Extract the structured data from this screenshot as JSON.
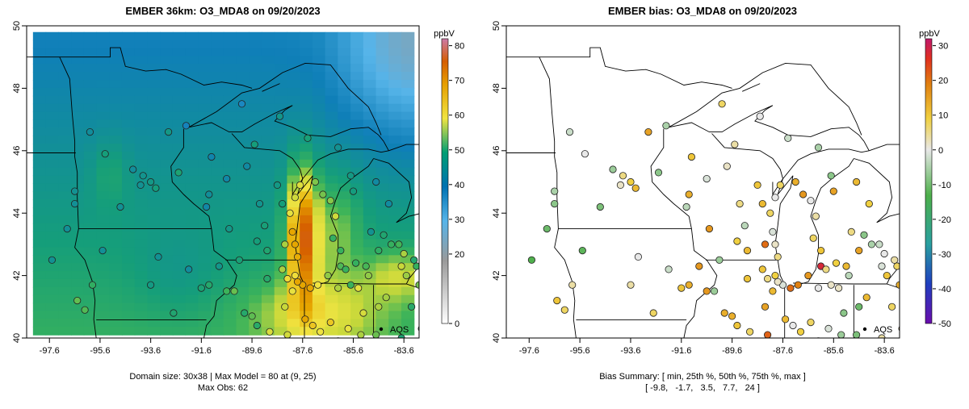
{
  "chart_data": [
    {
      "type": "heatmap",
      "title": "EMBER 36km: O3_MDA8 on 09/20/2023",
      "x_ticks": [
        "-97.6",
        "-95.6",
        "-93.6",
        "-91.6",
        "-89.6",
        "-87.6",
        "-85.6",
        "-83.6"
      ],
      "y_ticks": [
        "40",
        "42",
        "44",
        "46",
        "48",
        "50"
      ],
      "xlim": [
        -98.5,
        -83.0
      ],
      "ylim": [
        40,
        50
      ],
      "colorbar": {
        "label": "ppbV",
        "range": [
          0,
          82
        ],
        "ticks": [
          "0",
          "20",
          "30",
          "40",
          "50",
          "60",
          "70",
          "80"
        ],
        "colors": [
          "#ffffff",
          "#9a9a9a",
          "#56b4e9",
          "#0072b2",
          "#009e73",
          "#f0e442",
          "#e69f00",
          "#d55e00",
          "#cc79a7"
        ]
      },
      "footer": [
        "Domain size: 30x38 | Max Model = 80 at (9, 25)",
        "Max Obs: 62"
      ],
      "legend": "AQS",
      "grid": false
    },
    {
      "type": "scatter",
      "title": "EMBER bias: O3_MDA8 on 09/20/2023",
      "x_ticks": [
        "-97.6",
        "-95.6",
        "-93.6",
        "-91.6",
        "-89.6",
        "-87.6",
        "-85.6",
        "-83.6"
      ],
      "y_ticks": [
        "40",
        "42",
        "44",
        "46",
        "48",
        "50"
      ],
      "xlim": [
        -98.5,
        -83.0
      ],
      "ylim": [
        40,
        50
      ],
      "colorbar": {
        "label": "ppbV",
        "range": [
          -50,
          32
        ],
        "ticks": [
          "-50",
          "-40",
          "-30",
          "-20",
          "-10",
          "0",
          "10",
          "20",
          "30"
        ],
        "colors": [
          "#6a0dad",
          "#1f3fbf",
          "#2aa0a0",
          "#4daf4a",
          "#e0e0e0",
          "#f0d040",
          "#e08010",
          "#e03020",
          "#c0186a"
        ]
      },
      "footer": [
        "Bias Summary: [ min, 25th %, 50th %, 75th %, max ]",
        "[ -9.8,   -1.7,   3.5,   7.7,   24 ]"
      ],
      "bias_summary": {
        "min": -9.8,
        "p25": -1.7,
        "p50": 3.5,
        "p75": 7.7,
        "max": 24
      },
      "legend": "AQS",
      "grid": false
    }
  ]
}
